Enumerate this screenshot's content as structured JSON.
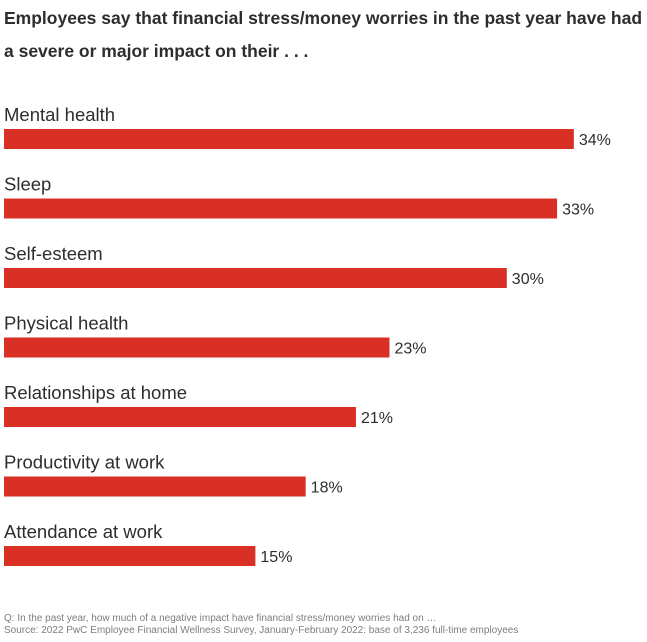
{
  "chart_data": {
    "type": "bar",
    "orientation": "horizontal",
    "title": "Employees say that financial stress/money worries in the past year have had a severe or major impact on their . . .",
    "categories": [
      "Mental health",
      "Sleep",
      "Self-esteem",
      "Physical health",
      "Relationships at home",
      "Productivity at work",
      "Attendance at work"
    ],
    "values": [
      34,
      33,
      30,
      23,
      21,
      18,
      15
    ],
    "value_labels": [
      "34%",
      "33%",
      "30%",
      "23%",
      "21%",
      "18%",
      "15%"
    ],
    "unit": "%",
    "xlabel": "",
    "ylabel": "",
    "grid": false,
    "bar_color": "#d93025"
  },
  "footnotes": {
    "question": "Q: In the past year, how much of a negative impact have financial stress/money worries had on …",
    "source": "Source: 2022 PwC Employee Financial Wellness Survey, January-February 2022: base of 3,236 full-time employees"
  }
}
